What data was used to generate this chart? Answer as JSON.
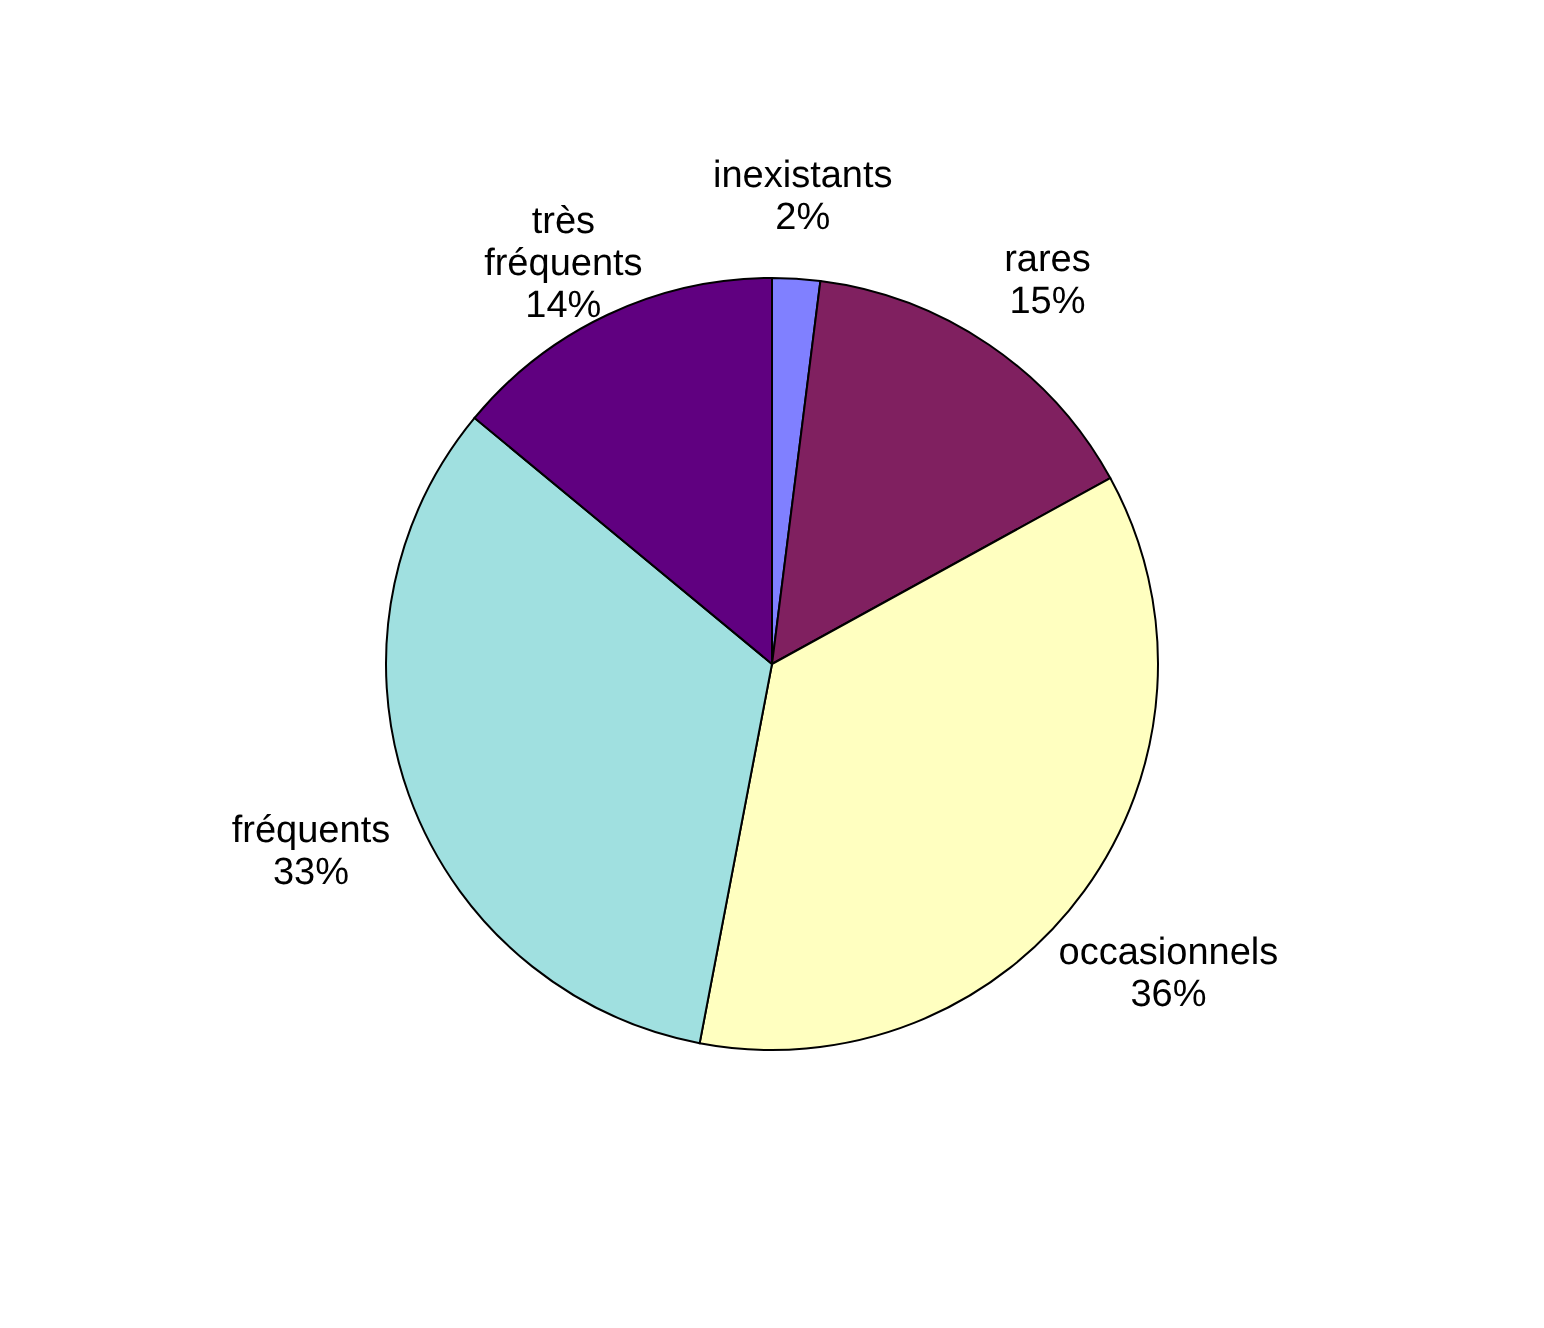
{
  "chart_data": {
    "type": "pie",
    "categories": [
      "inexistants",
      "rares",
      "occasionnels",
      "fréquents",
      "très fréquents"
    ],
    "values": [
      2,
      15,
      36,
      33,
      14
    ],
    "colors": [
      "#8080ff",
      "#802060",
      "#ffffc0",
      "#a0e0e0",
      "#600080"
    ],
    "value_labels": [
      "2%",
      "15%",
      "36%",
      "33%",
      "14%"
    ],
    "legend": false
  }
}
